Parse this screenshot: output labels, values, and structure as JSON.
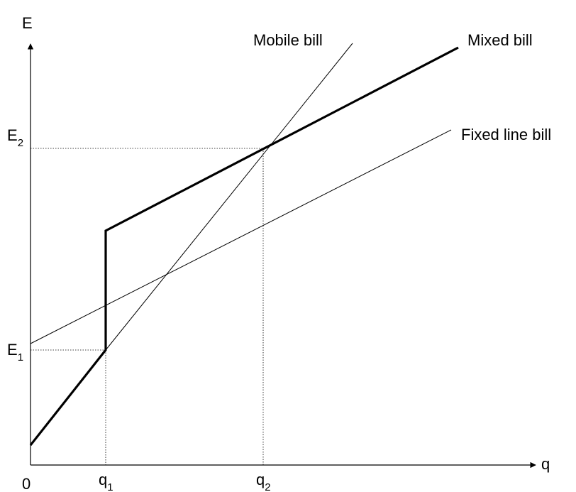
{
  "diagram": {
    "axes": {
      "y_label": "E",
      "x_label": "q",
      "origin_label": "0"
    },
    "ticks": {
      "x": [
        {
          "base": "q",
          "sub": "1"
        },
        {
          "base": "q",
          "sub": "2"
        }
      ],
      "y": [
        {
          "base": "E",
          "sub": "1"
        },
        {
          "base": "E",
          "sub": "2"
        }
      ]
    },
    "lines": {
      "mobile": "Mobile bill",
      "mixed": "Mixed bill",
      "fixed": "Fixed line bill"
    }
  }
}
